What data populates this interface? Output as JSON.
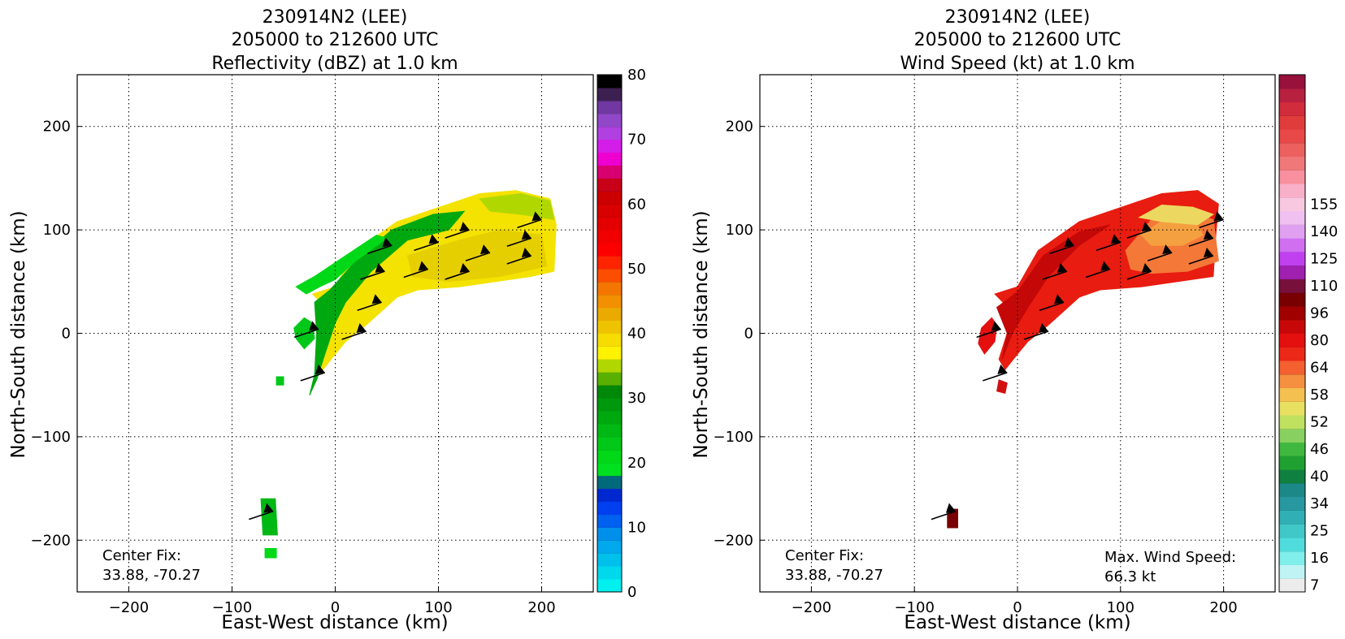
{
  "chart_data": [
    {
      "type": "heatmap",
      "title_lines": [
        "230914N2 (LEE)",
        "205000 to 212600 UTC",
        "Reflectivity (dBZ) at 1.0 km"
      ],
      "xlabel": "East-West distance (km)",
      "ylabel": "North-South distance (km)",
      "xlim": [
        -250,
        250
      ],
      "ylim": [
        -250,
        250
      ],
      "xticks": [
        -200,
        -100,
        0,
        100,
        200
      ],
      "yticks": [
        -200,
        -100,
        0,
        100,
        200
      ],
      "tick_labels": [
        "−200",
        "−100",
        "0",
        "100",
        "200"
      ],
      "grid": true,
      "annotations": [
        {
          "position": "bottom-left",
          "lines": [
            "Center Fix:",
            "33.88, -70.27"
          ]
        }
      ],
      "colorbar": {
        "min": 0,
        "max": 80,
        "ticks": [
          0,
          10,
          20,
          30,
          40,
          50,
          60,
          70,
          80
        ],
        "colors": [
          "#00f0f0",
          "#00d8ec",
          "#00c0ec",
          "#00a8ec",
          "#0090ec",
          "#0060f0",
          "#0040f0",
          "#0028d0",
          "#006a7a",
          "#00e020",
          "#00d818",
          "#00c818",
          "#00b814",
          "#00a810",
          "#00980c",
          "#008808",
          "#5ab000",
          "#b0d800",
          "#fef200",
          "#f6dc00",
          "#eec400",
          "#eaaa00",
          "#f29000",
          "#f47600",
          "#fb4e00",
          "#ff2400",
          "#fc0000",
          "#f00000",
          "#e40000",
          "#d80000",
          "#cc0000",
          "#c80018",
          "#d80070",
          "#ee00d0",
          "#d21ee8",
          "#b040e0",
          "#9048c8",
          "#7038a0",
          "#3c2050",
          "#000000"
        ]
      },
      "regions": [
        {
          "desc": "main rainband",
          "color": "#f4e200",
          "points": [
            [
              -22,
              38
            ],
            [
              0,
              45
            ],
            [
              20,
              80
            ],
            [
              60,
              108
            ],
            [
              110,
              125
            ],
            [
              140,
              135
            ],
            [
              175,
              138
            ],
            [
              208,
              130
            ],
            [
              214,
              105
            ],
            [
              212,
              60
            ],
            [
              190,
              55
            ],
            [
              120,
              45
            ],
            [
              80,
              42
            ],
            [
              60,
              35
            ],
            [
              30,
              8
            ],
            [
              10,
              -8
            ],
            [
              0,
              -20
            ],
            [
              -12,
              -35
            ],
            [
              -18,
              -25
            ],
            [
              -10,
              0
            ],
            [
              -8,
              15
            ],
            [
              -14,
              30
            ]
          ]
        },
        {
          "desc": "yellow inner core",
          "color": "#e6cf00",
          "points": [
            [
              70,
              75
            ],
            [
              120,
              90
            ],
            [
              160,
              100
            ],
            [
              200,
              95
            ],
            [
              205,
              65
            ],
            [
              160,
              55
            ],
            [
              110,
              50
            ],
            [
              75,
              55
            ]
          ]
        },
        {
          "desc": "green inner edge",
          "color": "#00a810",
          "points": [
            [
              -20,
              30
            ],
            [
              -5,
              42
            ],
            [
              20,
              70
            ],
            [
              55,
              100
            ],
            [
              95,
              115
            ],
            [
              125,
              118
            ],
            [
              110,
              100
            ],
            [
              70,
              90
            ],
            [
              35,
              60
            ],
            [
              10,
              30
            ],
            [
              0,
              10
            ],
            [
              -10,
              -20
            ],
            [
              -18,
              -45
            ],
            [
              -25,
              -60
            ],
            [
              -20,
              -40
            ],
            [
              -18,
              0
            ]
          ]
        },
        {
          "desc": "bright green outer fringe",
          "color": "#00d818",
          "points": [
            [
              -38,
              45
            ],
            [
              -20,
              55
            ],
            [
              10,
              75
            ],
            [
              40,
              95
            ],
            [
              50,
              92
            ],
            [
              20,
              70
            ],
            [
              0,
              52
            ],
            [
              -15,
              45
            ],
            [
              -28,
              38
            ]
          ]
        },
        {
          "desc": "small green arc",
          "color": "#00c818",
          "points": [
            [
              -40,
              5
            ],
            [
              -30,
              15
            ],
            [
              -22,
              10
            ],
            [
              -20,
              -5
            ],
            [
              -30,
              -15
            ],
            [
              -38,
              -5
            ]
          ]
        },
        {
          "desc": "yellow-green eastern tip",
          "color": "#b0d800",
          "points": [
            [
              140,
              130
            ],
            [
              180,
              135
            ],
            [
              208,
              128
            ],
            [
              212,
              110
            ],
            [
              180,
              115
            ],
            [
              150,
              118
            ]
          ]
        },
        {
          "desc": "isolated echo south",
          "color": "#00b814",
          "points": [
            [
              -72,
              -160
            ],
            [
              -58,
              -160
            ],
            [
              -56,
              -195
            ],
            [
              -70,
              -195
            ]
          ]
        },
        {
          "desc": "isolated echo far south",
          "color": "#00d818",
          "points": [
            [
              -68,
              -208
            ],
            [
              -57,
              -208
            ],
            [
              -57,
              -217
            ],
            [
              -68,
              -217
            ]
          ]
        },
        {
          "desc": "isolated pixel",
          "color": "#00c818",
          "points": [
            [
              -57,
              -42
            ],
            [
              -50,
              -42
            ],
            [
              -50,
              -50
            ],
            [
              -57,
              -50
            ]
          ]
        }
      ],
      "wind_barbs": [
        {
          "x": -16,
          "y": 4
        },
        {
          "x": -10,
          "y": -38
        },
        {
          "x": 30,
          "y": 2
        },
        {
          "x": 45,
          "y": 30
        },
        {
          "x": 48,
          "y": 60
        },
        {
          "x": 90,
          "y": 62
        },
        {
          "x": 130,
          "y": 60
        },
        {
          "x": 55,
          "y": 85
        },
        {
          "x": 100,
          "y": 88
        },
        {
          "x": 150,
          "y": 78
        },
        {
          "x": 190,
          "y": 75
        },
        {
          "x": 130,
          "y": 100
        },
        {
          "x": 190,
          "y": 92
        },
        {
          "x": 200,
          "y": 110
        },
        {
          "x": -60,
          "y": -172
        }
      ]
    },
    {
      "type": "heatmap",
      "title_lines": [
        "230914N2 (LEE)",
        "205000 to 212600 UTC",
        "Wind Speed (kt) at 1.0 km"
      ],
      "xlabel": "East-West distance (km)",
      "ylabel": "North-South distance (km)",
      "xlim": [
        -250,
        250
      ],
      "ylim": [
        -250,
        250
      ],
      "xticks": [
        -200,
        -100,
        0,
        100,
        200
      ],
      "yticks": [
        -200,
        -100,
        0,
        100,
        200
      ],
      "tick_labels": [
        "−200",
        "−100",
        "0",
        "100",
        "200"
      ],
      "grid": true,
      "annotations": [
        {
          "position": "bottom-left",
          "lines": [
            "Center Fix:",
            "33.88, -70.27"
          ]
        },
        {
          "position": "bottom-right",
          "lines": [
            "Max. Wind Speed:",
            "66.3 kt"
          ]
        }
      ],
      "colorbar": {
        "tick_labels": [
          "7",
          "16",
          "25",
          "34",
          "40",
          "46",
          "52",
          "58",
          "64",
          "80",
          "96",
          "110",
          "125",
          "140",
          "155"
        ],
        "tick_bands": [
          0,
          2,
          4,
          6,
          8,
          10,
          12,
          14,
          16,
          18,
          20,
          22,
          24,
          26,
          28
        ],
        "colors": [
          "#ececec",
          "#c0f4f4",
          "#80eeea",
          "#50dcdc",
          "#40c8c8",
          "#30b0b4",
          "#2898a0",
          "#1c8888",
          "#108040",
          "#20a030",
          "#40b840",
          "#88d060",
          "#c0e060",
          "#e8e060",
          "#f4c050",
          "#f49040",
          "#f46030",
          "#ec2818",
          "#e41010",
          "#c80808",
          "#a00000",
          "#780000",
          "#78103c",
          "#a020b0",
          "#c040f0",
          "#d070f0",
          "#e0a0f0",
          "#f0c0f0",
          "#f8c8e0",
          "#f8b0c8",
          "#f890a0",
          "#f07878",
          "#ec6060",
          "#e84848",
          "#e03c3c",
          "#d02c3c",
          "#b82040",
          "#98103c"
        ]
      },
      "regions": [
        {
          "desc": "main wind band",
          "color": "#e81c10",
          "points": [
            [
              -22,
              38
            ],
            [
              0,
              45
            ],
            [
              20,
              80
            ],
            [
              60,
              108
            ],
            [
              110,
              125
            ],
            [
              140,
              135
            ],
            [
              175,
              138
            ],
            [
              195,
              125
            ],
            [
              192,
              90
            ],
            [
              190,
              55
            ],
            [
              120,
              45
            ],
            [
              80,
              42
            ],
            [
              60,
              35
            ],
            [
              30,
              8
            ],
            [
              10,
              -8
            ],
            [
              0,
              -20
            ],
            [
              -12,
              -35
            ],
            [
              -18,
              -25
            ],
            [
              -10,
              0
            ],
            [
              -8,
              15
            ],
            [
              -14,
              30
            ]
          ]
        },
        {
          "desc": "darker red inner",
          "color": "#c40808",
          "points": [
            [
              -20,
              25
            ],
            [
              0,
              40
            ],
            [
              25,
              75
            ],
            [
              60,
              98
            ],
            [
              90,
              105
            ],
            [
              60,
              85
            ],
            [
              30,
              55
            ],
            [
              10,
              25
            ],
            [
              -5,
              0
            ],
            [
              -15,
              -25
            ],
            [
              -10,
              0
            ]
          ]
        },
        {
          "desc": "orange eastern",
          "color": "#f47838",
          "points": [
            [
              105,
              80
            ],
            [
              130,
              110
            ],
            [
              160,
              118
            ],
            [
              190,
              110
            ],
            [
              195,
              70
            ],
            [
              165,
              60
            ],
            [
              130,
              58
            ],
            [
              110,
              62
            ]
          ]
        },
        {
          "desc": "light orange east",
          "color": "#f4a040",
          "points": [
            [
              120,
              95
            ],
            [
              145,
              112
            ],
            [
              170,
              112
            ],
            [
              180,
              95
            ],
            [
              160,
              85
            ],
            [
              130,
              85
            ]
          ]
        },
        {
          "desc": "yellow tip",
          "color": "#ecd860",
          "points": [
            [
              118,
              112
            ],
            [
              140,
              124
            ],
            [
              170,
              122
            ],
            [
              190,
              115
            ],
            [
              175,
              105
            ],
            [
              140,
              108
            ]
          ]
        },
        {
          "desc": "western arc",
          "color": "#e41010",
          "points": [
            [
              -35,
              5
            ],
            [
              -25,
              15
            ],
            [
              -20,
              8
            ],
            [
              -22,
              -8
            ],
            [
              -32,
              -20
            ],
            [
              -38,
              -10
            ]
          ]
        },
        {
          "desc": "southwest fringe",
          "color": "#d01010",
          "points": [
            [
              -18,
              -45
            ],
            [
              -10,
              -48
            ],
            [
              -12,
              -58
            ],
            [
              -20,
              -56
            ]
          ]
        },
        {
          "desc": "isolated dark",
          "color": "#780000",
          "points": [
            [
              -68,
              -170
            ],
            [
              -58,
              -170
            ],
            [
              -58,
              -188
            ],
            [
              -68,
              -188
            ]
          ]
        }
      ],
      "wind_barbs": [
        {
          "x": -16,
          "y": 4
        },
        {
          "x": -10,
          "y": -38
        },
        {
          "x": 30,
          "y": 2
        },
        {
          "x": 45,
          "y": 30
        },
        {
          "x": 48,
          "y": 60
        },
        {
          "x": 90,
          "y": 62
        },
        {
          "x": 130,
          "y": 60
        },
        {
          "x": 55,
          "y": 85
        },
        {
          "x": 100,
          "y": 88
        },
        {
          "x": 150,
          "y": 78
        },
        {
          "x": 190,
          "y": 75
        },
        {
          "x": 130,
          "y": 100
        },
        {
          "x": 190,
          "y": 92
        },
        {
          "x": 200,
          "y": 110
        },
        {
          "x": -60,
          "y": -172
        }
      ]
    }
  ]
}
